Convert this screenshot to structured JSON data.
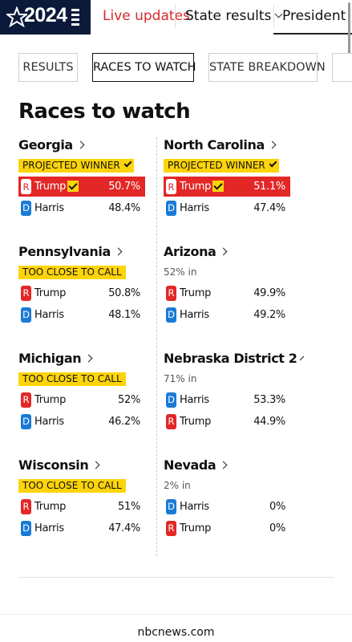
{
  "nav": {
    "logo_text": "2024",
    "live_updates": "Live updates",
    "state_results": "State results",
    "president": "President"
  },
  "tabs": [
    "RESULTS",
    "RACES TO WATCH",
    "STATE BREAKDOWN"
  ],
  "title": "Races to watch",
  "races": [
    {
      "name": "Georgia",
      "badge": "PROJECTED WINNER",
      "candidates": [
        {
          "party": "R",
          "name": "Trump",
          "pct": "50.7%",
          "winner": true
        },
        {
          "party": "D",
          "name": "Harris",
          "pct": "48.4%"
        }
      ]
    },
    {
      "name": "North Carolina",
      "badge": "PROJECTED WINNER",
      "candidates": [
        {
          "party": "R",
          "name": "Trump",
          "pct": "51.1%",
          "winner": true
        },
        {
          "party": "D",
          "name": "Harris",
          "pct": "47.4%"
        }
      ]
    },
    {
      "name": "Pennsylvania",
      "badge": "TOO CLOSE TO CALL",
      "candidates": [
        {
          "party": "R",
          "name": "Trump",
          "pct": "50.8%"
        },
        {
          "party": "D",
          "name": "Harris",
          "pct": "48.1%"
        }
      ]
    },
    {
      "name": "Arizona",
      "reporting": "52% in",
      "candidates": [
        {
          "party": "R",
          "name": "Trump",
          "pct": "49.9%"
        },
        {
          "party": "D",
          "name": "Harris",
          "pct": "49.2%"
        }
      ]
    },
    {
      "name": "Michigan",
      "badge": "TOO CLOSE TO CALL",
      "candidates": [
        {
          "party": "R",
          "name": "Trump",
          "pct": "52%"
        },
        {
          "party": "D",
          "name": "Harris",
          "pct": "46.2%"
        }
      ]
    },
    {
      "name": "Nebraska District 2",
      "reporting": "71% in",
      "candidates": [
        {
          "party": "D",
          "name": "Harris",
          "pct": "53.3%"
        },
        {
          "party": "R",
          "name": "Trump",
          "pct": "44.9%"
        }
      ]
    },
    {
      "name": "Wisconsin",
      "badge": "TOO CLOSE TO CALL",
      "candidates": [
        {
          "party": "R",
          "name": "Trump",
          "pct": "51%"
        },
        {
          "party": "D",
          "name": "Harris",
          "pct": "47.4%"
        }
      ]
    },
    {
      "name": "Nevada",
      "reporting": "2% in",
      "candidates": [
        {
          "party": "D",
          "name": "Harris",
          "pct": "0%"
        },
        {
          "party": "R",
          "name": "Trump",
          "pct": "0%"
        }
      ]
    }
  ],
  "footer": "nbcnews.com",
  "colors": {
    "republican": "#e32727",
    "democrat": "#1a7bd6",
    "badge": "#fdd40a",
    "logo_bg": "#0b1a3a"
  },
  "icons": [
    "star-icon",
    "menu-bars-icon",
    "chevron-down-icon",
    "chevron-right-icon",
    "checkmark-icon"
  ]
}
